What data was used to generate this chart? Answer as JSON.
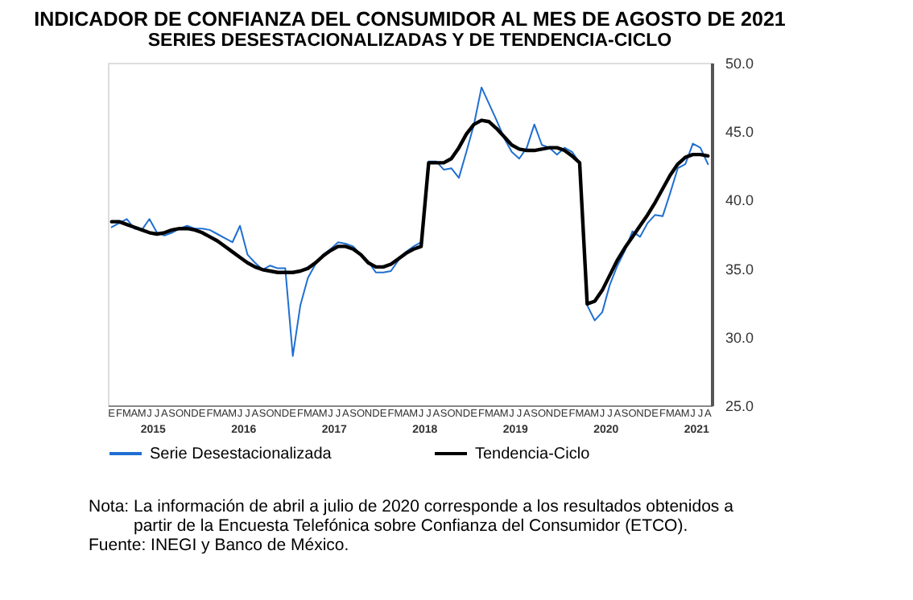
{
  "chart_data": {
    "type": "line",
    "title": "INDICADOR DE CONFIANZA DEL CONSUMIDOR AL MES DE AGOSTO DE 2021",
    "subtitle": "SERIES DESESTACIONALIZADAS Y DE TENDENCIA-CICLO",
    "categories": [
      "E",
      "F",
      "M",
      "A",
      "M",
      "J",
      "J",
      "A",
      "S",
      "O",
      "N",
      "D",
      "E",
      "F",
      "M",
      "A",
      "M",
      "J",
      "J",
      "A",
      "S",
      "O",
      "N",
      "D",
      "E",
      "F",
      "M",
      "A",
      "M",
      "J",
      "J",
      "A",
      "S",
      "O",
      "N",
      "D",
      "E",
      "F",
      "M",
      "A",
      "M",
      "J",
      "J",
      "A",
      "S",
      "O",
      "N",
      "D",
      "E",
      "F",
      "M",
      "A",
      "M",
      "J",
      "J",
      "A",
      "S",
      "O",
      "N",
      "D",
      "E",
      "F",
      "M",
      "A",
      "M",
      "J",
      "J",
      "A",
      "S",
      "O",
      "N",
      "D",
      "E",
      "F",
      "M",
      "A",
      "M",
      "J",
      "J",
      "A"
    ],
    "series": [
      {
        "name": "Serie Desestacionalizada",
        "color": "#1f6fd1",
        "values": [
          38.0,
          38.3,
          38.6,
          37.9,
          37.8,
          38.6,
          37.6,
          37.4,
          37.6,
          37.9,
          38.1,
          37.9,
          37.9,
          37.8,
          37.5,
          37.2,
          36.9,
          38.1,
          36.0,
          35.4,
          34.9,
          35.2,
          35.0,
          35.0,
          28.6,
          32.3,
          34.3,
          35.3,
          36.0,
          36.4,
          36.9,
          36.8,
          36.6,
          36.0,
          35.5,
          34.7,
          34.7,
          34.8,
          35.6,
          36.2,
          36.6,
          36.9,
          42.8,
          42.8,
          42.2,
          42.3,
          41.6,
          43.5,
          45.5,
          48.2,
          47.0,
          45.8,
          44.5,
          43.5,
          43.0,
          43.8,
          45.5,
          44.0,
          43.8,
          43.3,
          43.8,
          43.5,
          42.7,
          32.3,
          31.2,
          31.8,
          33.8,
          35.2,
          36.3,
          37.7,
          37.3,
          38.3,
          38.9,
          38.8,
          40.5,
          42.3,
          42.6,
          44.1,
          43.8,
          42.6
        ]
      },
      {
        "name": "Tendencia-Ciclo",
        "color": "#000000",
        "values": [
          38.4,
          38.4,
          38.2,
          38.0,
          37.8,
          37.6,
          37.5,
          37.6,
          37.8,
          37.9,
          37.9,
          37.8,
          37.6,
          37.3,
          37.0,
          36.6,
          36.2,
          35.8,
          35.4,
          35.1,
          34.9,
          34.8,
          34.7,
          34.7,
          34.7,
          34.8,
          35.0,
          35.4,
          35.9,
          36.3,
          36.6,
          36.6,
          36.4,
          36.0,
          35.4,
          35.1,
          35.1,
          35.3,
          35.7,
          36.1,
          36.4,
          36.6,
          42.7,
          42.7,
          42.7,
          43.0,
          43.8,
          44.8,
          45.5,
          45.8,
          45.7,
          45.2,
          44.6,
          44.0,
          43.7,
          43.6,
          43.6,
          43.7,
          43.8,
          43.8,
          43.6,
          43.2,
          42.7,
          32.4,
          32.6,
          33.4,
          34.5,
          35.6,
          36.5,
          37.3,
          38.1,
          38.9,
          39.8,
          40.8,
          41.8,
          42.6,
          43.1,
          43.3,
          43.3,
          43.2
        ]
      }
    ],
    "ylim": [
      25,
      50
    ],
    "yticks": [
      {
        "value": 25,
        "label": "25.0"
      },
      {
        "value": 30,
        "label": "30.0"
      },
      {
        "value": 35,
        "label": "35.0"
      },
      {
        "value": 40,
        "label": "40.0"
      },
      {
        "value": 45,
        "label": "45.0"
      },
      {
        "value": 50,
        "label": "50.0"
      }
    ],
    "grid": false,
    "legend": "bottom",
    "marker": "none",
    "line_style": "solid",
    "annotations": [
      "2015",
      "2016",
      "2017",
      "2018",
      "2019",
      "2020",
      "2021",
      "Nota: La información de abril a julio de 2020 corresponde a los resultados obtenidos a partir de la Encuesta Telefónica sobre Confianza del Consumidor (ETCO).",
      "Fuente: INEGI y Banco de México."
    ]
  }
}
